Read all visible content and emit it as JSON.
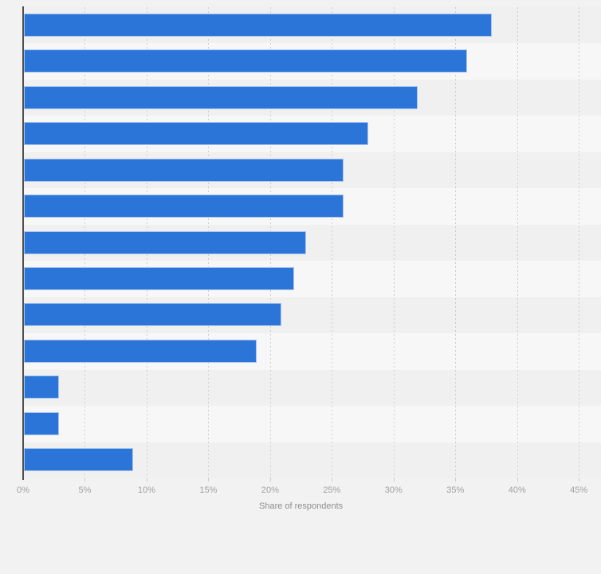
{
  "chart_data": {
    "type": "bar",
    "orientation": "horizontal",
    "title": "",
    "xlabel": "Share of respondents",
    "ylabel": "",
    "unit": "%",
    "values": [
      38,
      36,
      32,
      28,
      26,
      26,
      23,
      22,
      21,
      19,
      3,
      3,
      9
    ],
    "x_ticks": [
      "0%",
      "5%",
      "10%",
      "15%",
      "20%",
      "25%",
      "30%",
      "35%",
      "40%",
      "45%"
    ],
    "x_tick_values": [
      0,
      5,
      10,
      15,
      20,
      25,
      30,
      35,
      40,
      45
    ],
    "xlim": [
      0,
      45
    ],
    "grid": "vertical-dashed",
    "legend": "none",
    "colors": {
      "bar_fill": "#2b75d9",
      "bar_border": "#a9c5ee",
      "band_dark": "#f0f0f0",
      "band_light": "#f7f7f7",
      "page_background": "#f2f2f2",
      "axis_line": "#4f4f4f",
      "gridline": "#cccccc",
      "tick_label": "#a1a1a1",
      "axis_label": "#8e8e8e"
    }
  }
}
